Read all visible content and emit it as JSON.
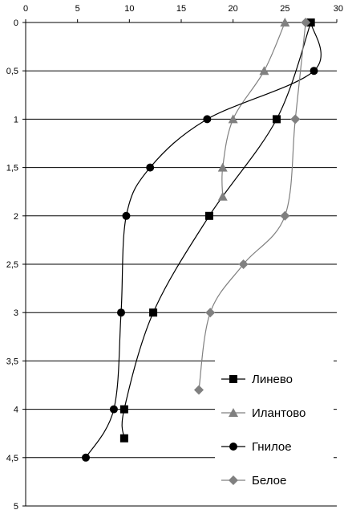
{
  "chart_data": {
    "type": "line",
    "x_axis": {
      "position": "top",
      "min": 0,
      "max": 30,
      "ticks": [
        0,
        5,
        10,
        15,
        20,
        25,
        30
      ]
    },
    "y_axis": {
      "inverted": true,
      "min": 0,
      "max": 5,
      "ticks": [
        0,
        0.5,
        1,
        1.5,
        2,
        2.5,
        3,
        3.5,
        4,
        4.5,
        5
      ],
      "tick_labels": [
        "0",
        "0,5",
        "1",
        "1,5",
        "2",
        "2,5",
        "3",
        "3,5",
        "4",
        "4,5",
        "5"
      ]
    },
    "grid": "horizontal",
    "legend_position": "bottom-right",
    "series": [
      {
        "name": "Линево",
        "marker": "square",
        "color": "#000000",
        "points": [
          [
            27.5,
            0
          ],
          [
            24.2,
            1
          ],
          [
            17.7,
            2
          ],
          [
            12.3,
            3
          ],
          [
            9.5,
            4
          ],
          [
            9.5,
            4.3
          ]
        ]
      },
      {
        "name": "Илантово",
        "marker": "triangle",
        "color": "#808080",
        "points": [
          [
            25,
            0
          ],
          [
            23,
            0.5
          ],
          [
            20,
            1
          ],
          [
            19,
            1.5
          ],
          [
            19,
            1.8
          ]
        ]
      },
      {
        "name": "Гнилое",
        "marker": "circle",
        "color": "#000000",
        "points": [
          [
            27.5,
            0
          ],
          [
            27.8,
            0.5
          ],
          [
            17.5,
            1
          ],
          [
            12,
            1.5
          ],
          [
            9.7,
            2
          ],
          [
            9.2,
            3
          ],
          [
            8.5,
            4
          ],
          [
            5.8,
            4.5
          ]
        ]
      },
      {
        "name": "Белое",
        "marker": "diamond",
        "color": "#808080",
        "points": [
          [
            27,
            0
          ],
          [
            26,
            1
          ],
          [
            25,
            2
          ],
          [
            21,
            2.5
          ],
          [
            17.8,
            3
          ],
          [
            16.7,
            3.8
          ]
        ]
      }
    ]
  }
}
